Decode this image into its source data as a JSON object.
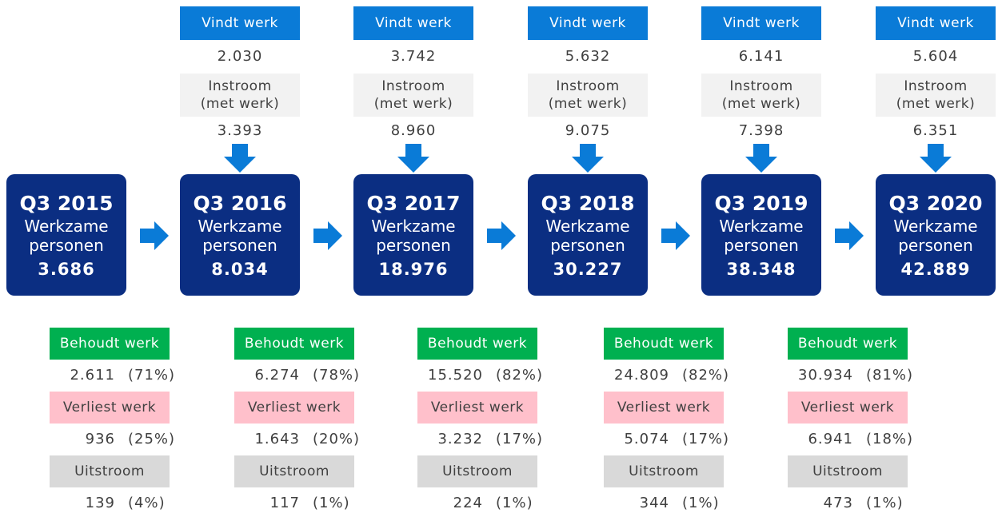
{
  "periods": [
    {
      "label": "Q3 2015",
      "title": "Werkzame personen",
      "value": "3.686"
    },
    {
      "label": "Q3 2016",
      "title": "Werkzame personen",
      "value": "8.034"
    },
    {
      "label": "Q3 2017",
      "title": "Werkzame personen",
      "value": "18.976"
    },
    {
      "label": "Q3 2018",
      "title": "Werkzame personen",
      "value": "30.227"
    },
    {
      "label": "Q3 2019",
      "title": "Werkzame personen",
      "value": "38.348"
    },
    {
      "label": "Q3 2020",
      "title": "Werkzame personen",
      "value": "42.889"
    }
  ],
  "inflows": [
    {
      "found_label": "Vindt werk",
      "found": "2.030",
      "inflow_label": "Instroom (met werk)",
      "inflow": "3.393"
    },
    {
      "found_label": "Vindt werk",
      "found": "3.742",
      "inflow_label": "Instroom (met werk)",
      "inflow": "8.960"
    },
    {
      "found_label": "Vindt werk",
      "found": "5.632",
      "inflow_label": "Instroom (met werk)",
      "inflow": "9.075"
    },
    {
      "found_label": "Vindt werk",
      "found": "6.141",
      "inflow_label": "Instroom (met werk)",
      "inflow": "7.398"
    },
    {
      "found_label": "Vindt werk",
      "found": "5.604",
      "inflow_label": "Instroom (met werk)",
      "inflow": "6.351"
    }
  ],
  "outcomes": [
    {
      "keeps_label": "Behoudt werk",
      "keeps": "2.611",
      "keeps_share": "(71%)",
      "loses_label": "Verliest werk",
      "loses": "936",
      "loses_share": "(25%)",
      "outflow_label": "Uitstroom",
      "outflow": "139",
      "outflow_share": "(4%)"
    },
    {
      "keeps_label": "Behoudt werk",
      "keeps": "6.274",
      "keeps_share": "(78%)",
      "loses_label": "Verliest werk",
      "loses": "1.643",
      "loses_share": "(20%)",
      "outflow_label": "Uitstroom",
      "outflow": "117",
      "outflow_share": "(1%)"
    },
    {
      "keeps_label": "Behoudt werk",
      "keeps": "15.520",
      "keeps_share": "(82%)",
      "loses_label": "Verliest werk",
      "loses": "3.232",
      "loses_share": "(17%)",
      "outflow_label": "Uitstroom",
      "outflow": "224",
      "outflow_share": "(1%)"
    },
    {
      "keeps_label": "Behoudt werk",
      "keeps": "24.809",
      "keeps_share": "(82%)",
      "loses_label": "Verliest werk",
      "loses": "5.074",
      "loses_share": "(17%)",
      "outflow_label": "Uitstroom",
      "outflow": "344",
      "outflow_share": "(1%)"
    },
    {
      "keeps_label": "Behoudt werk",
      "keeps": "30.934",
      "keeps_share": "(81%)",
      "loses_label": "Verliest werk",
      "loses": "6.941",
      "loses_share": "(18%)",
      "outflow_label": "Uitstroom",
      "outflow": "473",
      "outflow_share": "(1%)"
    }
  ]
}
